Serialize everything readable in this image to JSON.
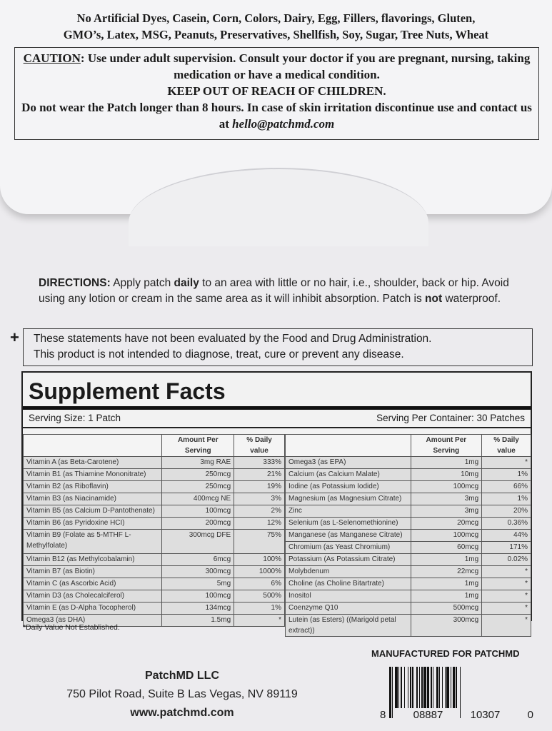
{
  "top": {
    "allergens_line1": "No Artificial Dyes, Casein, Corn, Colors, Dairy, Egg, Fillers, flavorings, Gluten,",
    "allergens_line2": "GMO’s, Latex, MSG, Peanuts, Preservatives, Shellfish, Soy, Sugar, Tree Nuts, Wheat",
    "caution_label": "CAUTION",
    "caution_text": ": Use under adult supervision. Consult your doctor if you are pregnant, nursing, taking medication or have a medical condition.",
    "keep_out": "KEEP OUT OF REACH OF CHILDREN.",
    "wear": "Do not wear the Patch longer than 8 hours. In case of skin irritation discontinue use and contact us at ",
    "email": "hello@patchmd.com"
  },
  "directions": {
    "label": "DIRECTIONS:",
    "t1": " Apply patch ",
    "daily": "daily",
    "t2": " to an area with little or no hair, i.e., shoulder, back or hip. Avoid using any lotion or cream in the same area as it will inhibit absorption. Patch is ",
    "not": "not",
    "t3": " waterproof."
  },
  "disclaimer": {
    "plus": "+",
    "line1": "These statements have not been evaluated by the Food and Drug Administration.",
    "line2": "This product is not intended to diagnose, treat, cure or prevent any disease."
  },
  "facts": {
    "title": "Supplement Facts",
    "serving_size": "Serving Size: 1 Patch",
    "serving_per": "Serving Per Container: 30 Patches",
    "col_amount": "Amount Per Serving",
    "col_dv": "% Daily value",
    "left": [
      [
        "Vitamin A (as Beta-Carotene)",
        "3mg RAE",
        "333%"
      ],
      [
        "Vitamin B1 (as Thiamine Mononitrate)",
        "250mcg",
        "21%"
      ],
      [
        "Vitamin B2 (as Riboflavin)",
        "250mcg",
        "19%"
      ],
      [
        "Vitamin B3 (as Niacinamide)",
        "400mcg NE",
        "3%"
      ],
      [
        "Vitamin B5 (as Calcium D-Pantothenate)",
        "100mcg",
        "2%"
      ],
      [
        "Vitamin B6 (as Pyridoxine HCI)",
        "200mcg",
        "12%"
      ],
      [
        "Vitamin B9 (Folate as 5-MTHF L-Methylfolate)",
        "300mcg DFE",
        "75%"
      ],
      [
        "Vitamin B12 (as Methylcobalamin)",
        "6mcg",
        "100%"
      ],
      [
        "Vitamin B7 (as Biotin)",
        "300mcg",
        "1000%"
      ],
      [
        "Vitamin C (as Ascorbic Acid)",
        "5mg",
        "6%"
      ],
      [
        "Vitamin D3 (as Cholecalciferol)",
        "100mcg",
        "500%"
      ],
      [
        "Vitamin E (as D-Alpha Tocopherol)",
        "134mcg",
        "1%"
      ],
      [
        "Omega3 (as DHA)",
        "1.5mg",
        "*"
      ]
    ],
    "right": [
      [
        "Omega3 (as EPA)",
        "1mg",
        "*"
      ],
      [
        "Calcium (as Calcium Malate)",
        "10mg",
        "1%"
      ],
      [
        "Iodine (as Potassium Iodide)",
        "100mcg",
        "66%"
      ],
      [
        "Magnesium (as Magnesium Citrate)",
        "3mg",
        "1%"
      ],
      [
        "Zinc",
        "3mg",
        "20%"
      ],
      [
        "Selenium (as L-Selenomethionine)",
        "20mcg",
        "0.36%"
      ],
      [
        "Manganese (as Manganese Citrate)",
        "100mcg",
        "44%"
      ],
      [
        "Chromium (as Yeast Chromium)",
        "60mcg",
        "171%"
      ],
      [
        "Potassium (As Potassium Citrate)",
        "1mg",
        "0.02%"
      ],
      [
        "Molybdenum",
        "22mcg",
        "*"
      ],
      [
        "Choline (as Choline Bitartrate)",
        "1mg",
        "*"
      ],
      [
        "Inositol",
        "1mg",
        "*"
      ],
      [
        "Coenzyme Q10",
        "500mcg",
        "*"
      ],
      [
        "Lutein (as Esters) ((Marigold petal extract))",
        "300mcg",
        "*"
      ]
    ],
    "note": "*Daily Value Not Established."
  },
  "footer": {
    "manufactured": "MANUFACTURED FOR PATCHMD",
    "company": "PatchMD LLC",
    "address": "750 Pilot Road, Suite B Las Vegas, NV 89119",
    "website": "www.patchmd.com",
    "barcode_digits": [
      "8",
      "08887",
      "10307",
      "0"
    ]
  }
}
